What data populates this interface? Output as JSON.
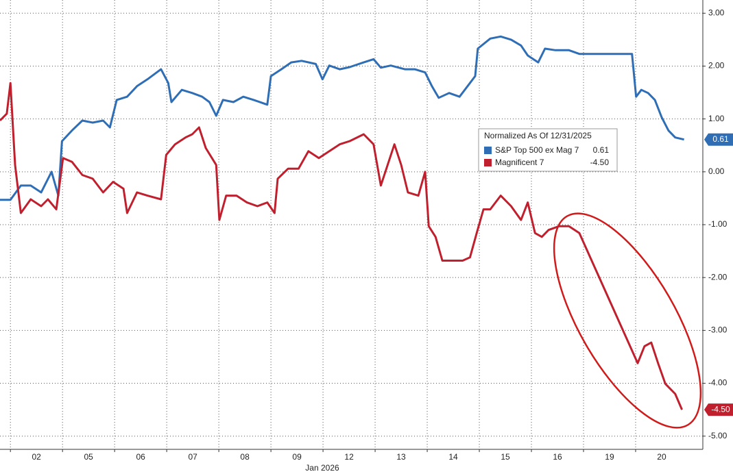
{
  "chart_data": {
    "type": "line",
    "legend_title": "Normalized As Of 12/31/2025",
    "x_axis_label": "Jan 2026",
    "categories": [
      "02",
      "05",
      "06",
      "07",
      "08",
      "09",
      "12",
      "13",
      "14",
      "15",
      "16",
      "19",
      "20"
    ],
    "xlim": [
      -0.2,
      13.29
    ],
    "ylim": [
      -5.25,
      3.25
    ],
    "yticks": [
      {
        "value": 3,
        "label": "3.00"
      },
      {
        "value": 2,
        "label": "2.00"
      },
      {
        "value": 1,
        "label": "1.00"
      },
      {
        "value": 0,
        "label": "0.00"
      },
      {
        "value": -1,
        "label": "-1.00"
      },
      {
        "value": -2,
        "label": "-2.00"
      },
      {
        "value": -3,
        "label": "-3.00"
      },
      {
        "value": -4,
        "label": "-4.00"
      },
      {
        "value": -5,
        "label": "-5.00"
      }
    ],
    "grid": true,
    "series": [
      {
        "name": "S&P Top 500 ex Mag 7",
        "color": "#2f6eb5",
        "last_label": "0.61",
        "x": [
          -0.2,
          0,
          0.2,
          0.39,
          0.59,
          0.79,
          0.92,
          0.99,
          1.18,
          1.38,
          1.58,
          1.78,
          1.91,
          2.04,
          2.24,
          2.43,
          2.63,
          2.89,
          3.03,
          3.09,
          3.29,
          3.49,
          3.68,
          3.82,
          3.95,
          4.08,
          4.28,
          4.47,
          4.67,
          4.93,
          5.0,
          5.2,
          5.39,
          5.59,
          5.86,
          5.99,
          6.12,
          6.32,
          6.51,
          6.78,
          6.97,
          7.11,
          7.3,
          7.57,
          7.76,
          7.96,
          8.09,
          8.22,
          8.42,
          8.62,
          8.82,
          8.92,
          8.97,
          9.21,
          9.41,
          9.61,
          9.8,
          9.93,
          10.13,
          10.26,
          10.46,
          10.72,
          10.92,
          11.25,
          11.64,
          11.93,
          12.01,
          12.11,
          12.24,
          12.37,
          12.5,
          12.63,
          12.76,
          12.93
        ],
        "values": [
          -0.53,
          -0.53,
          -0.26,
          -0.26,
          -0.39,
          0,
          -0.45,
          0.58,
          0.78,
          0.97,
          0.93,
          0.97,
          0.84,
          1.36,
          1.42,
          1.62,
          1.75,
          1.94,
          1.68,
          1.32,
          1.55,
          1.49,
          1.42,
          1.32,
          1.06,
          1.36,
          1.32,
          1.42,
          1.36,
          1.27,
          1.81,
          1.94,
          2.07,
          2.1,
          2.04,
          1.75,
          2.01,
          1.94,
          1.98,
          2.07,
          2.13,
          1.97,
          2.01,
          1.94,
          1.94,
          1.88,
          1.62,
          1.4,
          1.49,
          1.42,
          1.68,
          1.81,
          2.33,
          2.52,
          2.56,
          2.5,
          2.39,
          2.2,
          2.07,
          2.33,
          2.3,
          2.3,
          2.23,
          2.23,
          2.23,
          2.23,
          1.42,
          1.55,
          1.49,
          1.36,
          1.03,
          0.78,
          0.65,
          0.61
        ]
      },
      {
        "name": "Magnificent 7",
        "color": "#c0202e",
        "last_label": "-4.50",
        "x": [
          -0.2,
          -0.07,
          0,
          0.09,
          0.2,
          0.39,
          0.59,
          0.72,
          0.88,
          1.01,
          1.18,
          1.38,
          1.58,
          1.78,
          1.97,
          2.17,
          2.24,
          2.43,
          2.63,
          2.89,
          2.99,
          3.16,
          3.36,
          3.49,
          3.62,
          3.75,
          3.95,
          4.01,
          4.14,
          4.34,
          4.54,
          4.74,
          4.93,
          5.07,
          5.13,
          5.33,
          5.53,
          5.72,
          5.92,
          6.12,
          6.32,
          6.51,
          6.78,
          6.97,
          7.11,
          7.24,
          7.37,
          7.5,
          7.63,
          7.83,
          7.96,
          8.03,
          8.16,
          8.29,
          8.49,
          8.68,
          8.82,
          8.95,
          9.08,
          9.21,
          9.41,
          9.61,
          9.8,
          9.93,
          10.07,
          10.2,
          10.33,
          10.53,
          10.72,
          10.92,
          12.04,
          12.17,
          12.3,
          12.43,
          12.57,
          12.76,
          12.89
        ],
        "values": [
          0.97,
          1.1,
          1.68,
          0.13,
          -0.78,
          -0.52,
          -0.65,
          -0.52,
          -0.71,
          0.26,
          0.19,
          -0.06,
          -0.13,
          -0.39,
          -0.19,
          -0.32,
          -0.78,
          -0.39,
          -0.45,
          -0.52,
          0.32,
          0.52,
          0.65,
          0.71,
          0.84,
          0.45,
          0.13,
          -0.91,
          -0.45,
          -0.45,
          -0.58,
          -0.65,
          -0.58,
          -0.78,
          -0.13,
          0.06,
          0.06,
          0.39,
          0.26,
          0.39,
          0.52,
          0.58,
          0.71,
          0.52,
          -0.26,
          0.13,
          0.52,
          0.13,
          -0.39,
          -0.45,
          0,
          -1.03,
          -1.23,
          -1.68,
          -1.68,
          -1.68,
          -1.62,
          -1.16,
          -0.71,
          -0.71,
          -0.45,
          -0.65,
          -0.91,
          -0.58,
          -1.16,
          -1.23,
          -1.1,
          -1.03,
          -1.03,
          -1.16,
          -3.62,
          -3.3,
          -3.23,
          -3.62,
          -4.01,
          -4.2,
          -4.5
        ]
      }
    ]
  }
}
